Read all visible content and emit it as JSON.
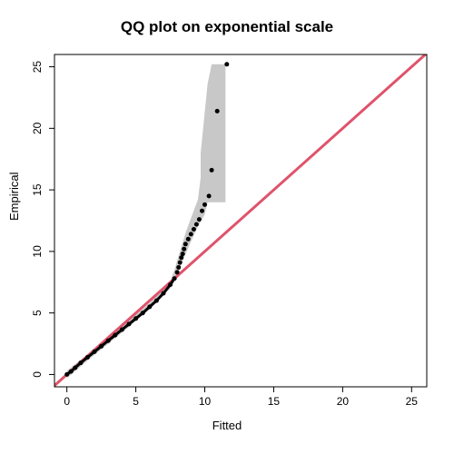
{
  "chart_data": {
    "type": "scatter",
    "title": "QQ plot on exponential scale",
    "xlabel": "Fitted",
    "ylabel": "Empirical",
    "xlim": [
      -0.9,
      26.1
    ],
    "ylim": [
      -1.0,
      26.0
    ],
    "x_ticks": [
      0,
      5,
      10,
      15,
      20,
      25
    ],
    "y_ticks": [
      0,
      5,
      10,
      15,
      20,
      25
    ],
    "grid": false,
    "legend": "none",
    "reference_line": {
      "slope": 1,
      "intercept": 0,
      "color": "#DF536B"
    },
    "point_color": "#000000",
    "band_color": "#C8C8C8",
    "points": [
      {
        "x": 0.0,
        "y": 0.0
      },
      {
        "x": 0.3,
        "y": 0.25
      },
      {
        "x": 0.6,
        "y": 0.55
      },
      {
        "x": 1.0,
        "y": 0.95
      },
      {
        "x": 1.5,
        "y": 1.4
      },
      {
        "x": 2.0,
        "y": 1.85
      },
      {
        "x": 2.5,
        "y": 2.3
      },
      {
        "x": 3.0,
        "y": 2.75
      },
      {
        "x": 3.5,
        "y": 3.2
      },
      {
        "x": 4.0,
        "y": 3.65
      },
      {
        "x": 4.5,
        "y": 4.1
      },
      {
        "x": 5.0,
        "y": 4.55
      },
      {
        "x": 5.5,
        "y": 5.0
      },
      {
        "x": 6.0,
        "y": 5.5
      },
      {
        "x": 6.5,
        "y": 6.0
      },
      {
        "x": 7.0,
        "y": 6.6
      },
      {
        "x": 7.5,
        "y": 7.3
      },
      {
        "x": 7.8,
        "y": 7.8
      },
      {
        "x": 8.0,
        "y": 8.3
      },
      {
        "x": 8.1,
        "y": 8.7
      },
      {
        "x": 8.2,
        "y": 9.1
      },
      {
        "x": 8.3,
        "y": 9.5
      },
      {
        "x": 8.4,
        "y": 9.8
      },
      {
        "x": 8.5,
        "y": 10.2
      },
      {
        "x": 8.6,
        "y": 10.6
      },
      {
        "x": 8.8,
        "y": 11.0
      },
      {
        "x": 9.0,
        "y": 11.4
      },
      {
        "x": 9.2,
        "y": 11.8
      },
      {
        "x": 9.4,
        "y": 12.2
      },
      {
        "x": 9.6,
        "y": 12.6
      },
      {
        "x": 9.8,
        "y": 13.3
      },
      {
        "x": 10.0,
        "y": 13.8
      },
      {
        "x": 10.3,
        "y": 14.5
      },
      {
        "x": 10.5,
        "y": 16.6
      },
      {
        "x": 10.9,
        "y": 21.4
      },
      {
        "x": 11.6,
        "y": 25.2
      }
    ],
    "band_upper": [
      {
        "x": 0,
        "y": 0.3
      },
      {
        "x": 2,
        "y": 2.1
      },
      {
        "x": 4,
        "y": 3.9
      },
      {
        "x": 6,
        "y": 5.8
      },
      {
        "x": 7.5,
        "y": 7.6
      },
      {
        "x": 7.8,
        "y": 8.5
      },
      {
        "x": 8.2,
        "y": 10.0
      },
      {
        "x": 8.6,
        "y": 11.5
      },
      {
        "x": 9.0,
        "y": 12.7
      },
      {
        "x": 9.5,
        "y": 14.2
      },
      {
        "x": 9.7,
        "y": 16.0
      },
      {
        "x": 9.7,
        "y": 18.0
      },
      {
        "x": 10.2,
        "y": 23.6
      },
      {
        "x": 10.5,
        "y": 25.2
      },
      {
        "x": 11.5,
        "y": 25.2
      }
    ],
    "band_lower": [
      {
        "x": 11.5,
        "y": 14.0
      },
      {
        "x": 10.2,
        "y": 14.0
      },
      {
        "x": 10.0,
        "y": 13.0
      },
      {
        "x": 9.5,
        "y": 12.0
      },
      {
        "x": 9.0,
        "y": 10.8
      },
      {
        "x": 8.5,
        "y": 9.5
      },
      {
        "x": 8.0,
        "y": 8.0
      },
      {
        "x": 7.5,
        "y": 7.0
      },
      {
        "x": 6.0,
        "y": 5.3
      },
      {
        "x": 4.0,
        "y": 3.4
      },
      {
        "x": 2.0,
        "y": 1.6
      },
      {
        "x": 0,
        "y": -0.3
      }
    ]
  }
}
